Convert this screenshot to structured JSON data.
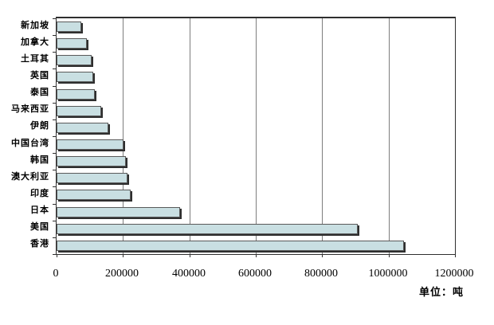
{
  "chart_data": {
    "type": "bar",
    "orientation": "horizontal",
    "category_order": "top-to-bottom",
    "categories": [
      "新加坡",
      "加拿大",
      "土耳其",
      "英国",
      "泰国",
      "马来西亚",
      "伊朗",
      "中国台湾",
      "韩国",
      "澳大利亚",
      "印度",
      "日本",
      "美国",
      "香港"
    ],
    "values": [
      75000,
      92000,
      105000,
      110000,
      115000,
      135000,
      155000,
      202000,
      208000,
      213000,
      222000,
      373000,
      908000,
      1046000
    ],
    "title": "",
    "xlabel": "",
    "ylabel": "",
    "xlim": [
      0,
      1200000
    ],
    "x_ticks": [
      0,
      200000,
      400000,
      600000,
      800000,
      1000000,
      1200000
    ],
    "x_tick_labels": [
      "0",
      "200000",
      "400000",
      "600000",
      "800000",
      "1000000",
      "1200000"
    ],
    "unit_label": "单位：吨",
    "grid": true,
    "legend": "none",
    "bar_color": "#c9dfe2",
    "bar_border_color": "#5a5a5a",
    "bar_shadow_color": "#2e2e2e",
    "gridline_color": "#7d7d7d",
    "plot_border_color": "#2f2f2f",
    "background_color": "#ffffff"
  }
}
